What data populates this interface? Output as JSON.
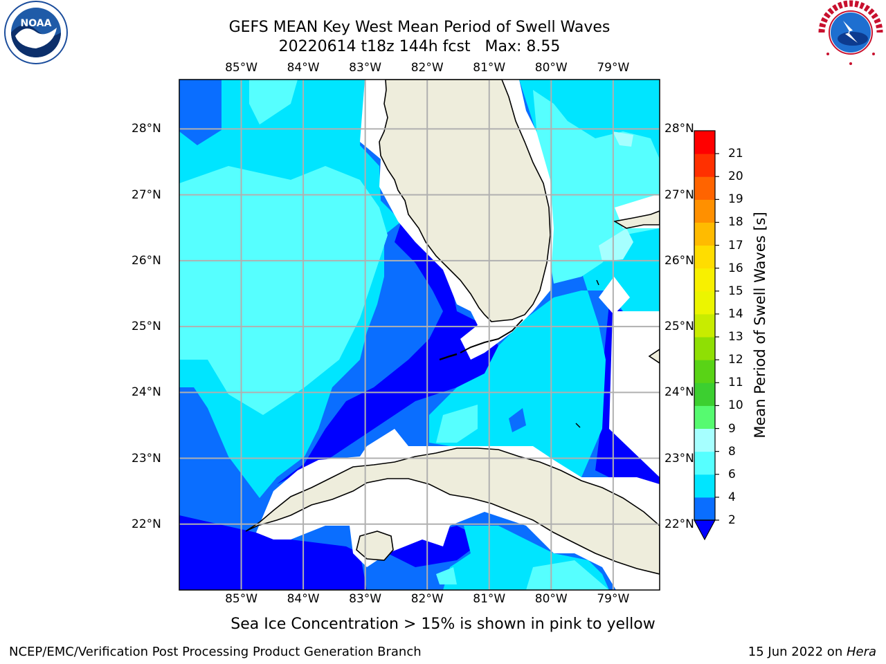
{
  "title": {
    "line1": "GEFS MEAN Key West Mean Period of Swell Waves",
    "line2": "20220614 t18z 144h fcst   Max: 8.55"
  },
  "logos": {
    "left": {
      "text": "NOAA",
      "ring_text": "NATIONAL OCEANIC AND ATMOSPHERIC ADMINISTRATION · U.S. DEPARTMENT OF COMMERCE"
    },
    "right": {
      "ring_text": "NATIONAL WEATHER SERVICE"
    }
  },
  "map": {
    "lon_labels": [
      "85°W",
      "84°W",
      "83°W",
      "82°W",
      "81°W",
      "80°W",
      "79°W"
    ],
    "lat_labels": [
      "28°N",
      "27°N",
      "26°N",
      "25°N",
      "24°N",
      "23°N",
      "22°N"
    ],
    "lon_values": [
      -85,
      -84,
      -83,
      -82,
      -81,
      -80,
      -79
    ],
    "lat_values": [
      28,
      27,
      26,
      25,
      24,
      23,
      22
    ],
    "extent": {
      "lon_min": -86.0,
      "lon_max": -78.25,
      "lat_min": 21.0,
      "lat_max": 28.75
    },
    "land_color": "#eeeddc",
    "gridline_color": "#b0b0b0"
  },
  "colorbar": {
    "label": "Mean Period of Swell Waves [s]",
    "ticks": [
      "2",
      "4",
      "6",
      "8",
      "9",
      "10",
      "11",
      "12",
      "13",
      "14",
      "15",
      "16",
      "17",
      "18",
      "19",
      "20",
      "21"
    ],
    "levels": [
      2,
      4,
      6,
      8,
      9,
      10,
      11,
      12,
      13,
      14,
      15,
      16,
      17,
      18,
      19,
      20,
      21
    ],
    "colors": [
      "#0a6eff",
      "#00e5ff",
      "#56ffff",
      "#a6ffff",
      "#56fa70",
      "#3ccf30",
      "#59d316",
      "#8fdf04",
      "#c8ec00",
      "#ecf500",
      "#f8f000",
      "#ffdd00",
      "#ffbb00",
      "#ff9000",
      "#ff6400",
      "#ff3000",
      "#ff0000"
    ],
    "extend_color": "#0000ff"
  },
  "field_colors": {
    "lt2": "#0000ff",
    "2to4": "#0a6eff",
    "4to6": "#00e5ff",
    "6to8": "#56ffff",
    "8to9": "#a6ffff"
  },
  "caption": "Sea Ice Concentration > 15% is shown in pink to yellow",
  "footer": {
    "left": "NCEP/EMC/Verification Post Processing Product Generation Branch",
    "right_prefix": "15 Jun 2022 on ",
    "right_host": "Hera"
  }
}
